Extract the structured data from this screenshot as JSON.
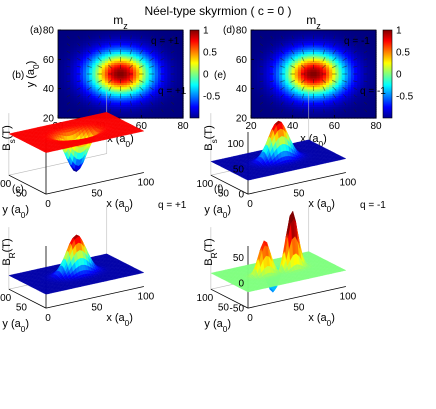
{
  "figure_title": "Néel-type skyrmion ( c = 0 )",
  "chart_data": [
    {
      "type": "heatmap",
      "panel": "(a)",
      "title": "m",
      "title_sub": "z",
      "annotation": "q = +1",
      "xlabel": "x (a",
      "xlabel_sub": "0",
      "xlabel_end": ")",
      "ylabel": "y (a",
      "ylabel_sub": "0",
      "ylabel_end": ")",
      "xlim": [
        20,
        80
      ],
      "ylim": [
        20,
        80
      ],
      "xticks": [
        "20",
        "40",
        "60",
        "80"
      ],
      "yticks": [
        "20",
        "40",
        "60",
        "80"
      ],
      "skyrmion_center": [
        50,
        50
      ],
      "skyrmion_radius": 10,
      "mz_core": 1,
      "mz_background": -1,
      "arrows": "radial",
      "colorbar_ticks": [
        "1",
        "0.5",
        "0",
        "-0.5"
      ],
      "colormap": "jet"
    },
    {
      "type": "heatmap",
      "panel": "(d)",
      "title": "m",
      "title_sub": "z",
      "annotation": "q = -1",
      "xlabel": "x (a",
      "xlabel_sub": "0",
      "xlabel_end": ")",
      "ylabel": "",
      "ylabel_sub": "",
      "ylabel_end": "",
      "xlim": [
        20,
        80
      ],
      "ylim": [
        20,
        80
      ],
      "xticks": [
        "20",
        "40",
        "60",
        "80"
      ],
      "yticks": [
        "20",
        "40",
        "60",
        "80"
      ],
      "skyrmion_center": [
        50,
        50
      ],
      "skyrmion_radius": 10,
      "mz_core": 1,
      "mz_background": -1,
      "arrows": "anti-radial",
      "colorbar_ticks": [
        "1",
        "0.5",
        "0",
        "-0.5"
      ],
      "colormap": "jet"
    },
    {
      "type": "surface",
      "panel": "(b)",
      "annotation": "q = +1",
      "zlabel": "B",
      "zlabel_sub": "s",
      "zlabel_end": "(T)",
      "xlabel": "x (a",
      "xlabel_sub": "0",
      "xlabel_end": ")",
      "ylabel": "y (a",
      "ylabel_sub": "0",
      "ylabel_end": ")",
      "zticks": [],
      "xticks": [
        "0",
        "50",
        "100"
      ],
      "yticks": [
        "50",
        "100"
      ],
      "profile": "dip",
      "peak": -100,
      "background": 0
    },
    {
      "type": "surface",
      "panel": "(e)",
      "annotation": "q = -1",
      "zlabel": "B",
      "zlabel_sub": "s",
      "zlabel_end": "(T)",
      "xlabel": "x (a",
      "xlabel_sub": "0",
      "xlabel_end": ")",
      "ylabel": "y (a",
      "ylabel_sub": "0",
      "ylabel_end": ")",
      "zticks": [
        "100",
        "50",
        "0"
      ],
      "xticks": [
        "0",
        "50",
        "100"
      ],
      "yticks": [
        "50",
        "100"
      ],
      "profile": "peak",
      "peak": 100,
      "background": 0
    },
    {
      "type": "surface",
      "panel": "(c)",
      "annotation": "q = +1",
      "zlabel": "B",
      "zlabel_sub": "R",
      "zlabel_end": "(T)",
      "xlabel": "x (a",
      "xlabel_sub": "0",
      "xlabel_end": ")",
      "ylabel": "y (a",
      "ylabel_sub": "0",
      "ylabel_end": ")",
      "zticks": [],
      "xticks": [
        "0",
        "50",
        "100"
      ],
      "yticks": [
        "50",
        "100"
      ],
      "profile": "peak",
      "peak": 100,
      "background": 0
    },
    {
      "type": "surface",
      "panel": "(f)",
      "annotation": "q = -1",
      "zlabel": "B",
      "zlabel_sub": "R",
      "zlabel_end": "(T)",
      "xlabel": "x (a",
      "xlabel_sub": "0",
      "xlabel_end": ")",
      "ylabel": "y (a",
      "ylabel_sub": "0",
      "ylabel_end": ")",
      "zticks": [
        "50",
        "0",
        "-50"
      ],
      "xticks": [
        "0",
        "50",
        "100"
      ],
      "yticks": [
        "50",
        "100"
      ],
      "profile": "quadrupole",
      "peak": 50,
      "background": 0
    }
  ]
}
